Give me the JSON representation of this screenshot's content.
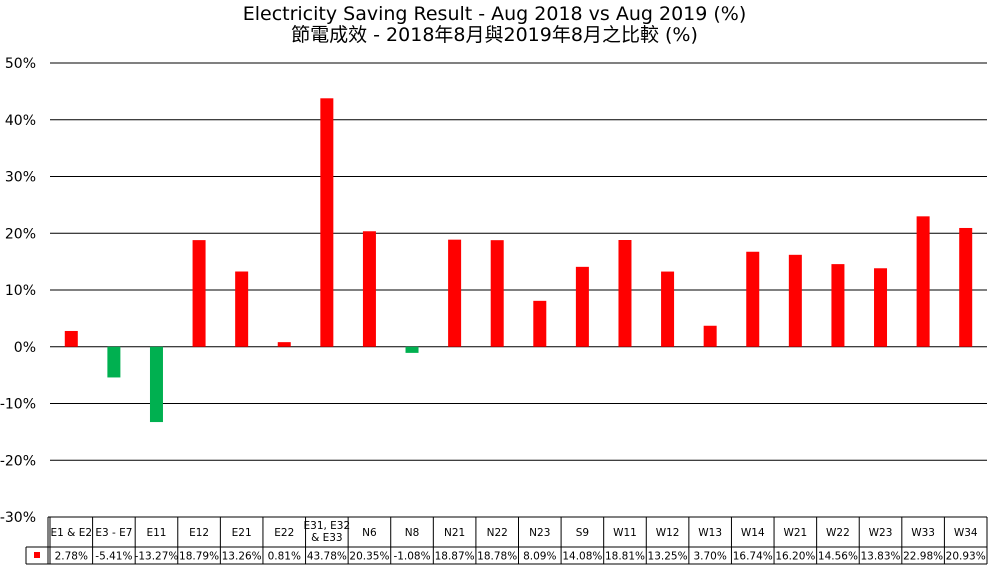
{
  "chart_data": {
    "type": "bar",
    "title": "Electricity Saving Result - Aug 2018 vs Aug 2019 (%)",
    "subtitle": "節電成效 - 2018年8月與2019年8月之比較 (%)",
    "categories": [
      [
        "E1 & E2"
      ],
      [
        "E3 - E7"
      ],
      [
        "E11"
      ],
      [
        "E12"
      ],
      [
        "E21"
      ],
      [
        "E22"
      ],
      [
        "E31, E32",
        "& E33"
      ],
      [
        "N6"
      ],
      [
        "N8"
      ],
      [
        "N21"
      ],
      [
        "N22"
      ],
      [
        "N23"
      ],
      [
        "S9"
      ],
      [
        "W11"
      ],
      [
        "W12"
      ],
      [
        "W13"
      ],
      [
        "W14"
      ],
      [
        "W21"
      ],
      [
        "W22"
      ],
      [
        "W23"
      ],
      [
        "W33"
      ],
      [
        "W34"
      ]
    ],
    "values": [
      2.78,
      -5.41,
      -13.27,
      18.79,
      13.26,
      0.81,
      43.78,
      20.35,
      -1.08,
      18.87,
      18.78,
      8.09,
      14.08,
      18.81,
      13.25,
      3.7,
      16.74,
      16.2,
      14.56,
      13.83,
      22.98,
      20.93
    ],
    "value_labels": [
      "2.78%",
      "-5.41%",
      "-13.27%",
      "18.79%",
      "13.26%",
      "0.81%",
      "43.78%",
      "20.35%",
      "-1.08%",
      "18.87%",
      "18.78%",
      "8.09%",
      "14.08%",
      "18.81%",
      "13.25%",
      "3.70%",
      "16.74%",
      "16.20%",
      "14.56%",
      "13.83%",
      "22.98%",
      "20.93%"
    ],
    "ylim": [
      -30,
      50
    ],
    "yticks": [
      50,
      40,
      30,
      20,
      10,
      0,
      -10,
      -20,
      -30
    ],
    "ytick_labels": [
      "50%",
      "40%",
      "30%",
      "20%",
      "10%",
      "0%",
      "-10%",
      "-20%",
      "-30%"
    ],
    "grid": true,
    "data_table": true,
    "colors": {
      "positive": "#ff0000",
      "negative": "#00b050",
      "grid": "#000000"
    }
  }
}
